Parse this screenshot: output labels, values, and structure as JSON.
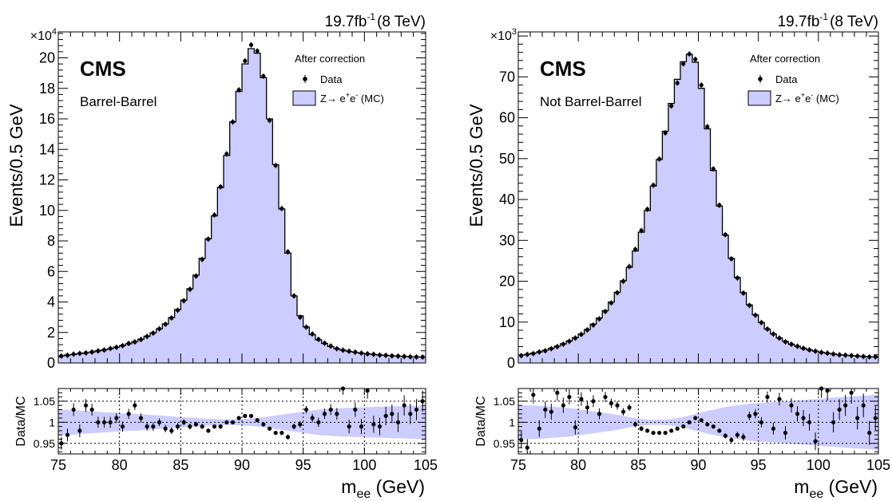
{
  "chart_data": [
    {
      "type": "bar",
      "panel": "Barrel-Barrel",
      "experiment": "CMS",
      "region_label": "Barrel-Barrel",
      "lumi_label": "19.7fb",
      "lumi_exp": "-1",
      "energy_label": "(8 TeV)",
      "legend_title": "After correction",
      "legend": {
        "data": "Data",
        "mc": "Z→ e",
        "mc_tail": " (MC)"
      },
      "ylabel": "Events/0.5 GeV",
      "ymultiplier": "×10",
      "ymultiplier_exp": "4",
      "ylim": [
        0,
        21.7
      ],
      "yticks": [
        0,
        2,
        4,
        6,
        8,
        10,
        12,
        14,
        16,
        18,
        20
      ],
      "xlim": [
        75,
        105
      ],
      "xticks": [
        75,
        80,
        85,
        90,
        95,
        100,
        105
      ],
      "xlabel_main": "m",
      "xlabel_sub": "ee",
      "xlabel_unit": " (GeV)",
      "bin_edges_start": 75,
      "bin_width": 0.5,
      "mc_values": [
        0.46,
        0.52,
        0.56,
        0.62,
        0.66,
        0.72,
        0.8,
        0.86,
        0.94,
        1.04,
        1.14,
        1.26,
        1.4,
        1.56,
        1.76,
        1.98,
        2.24,
        2.56,
        2.98,
        3.5,
        4.12,
        4.86,
        5.76,
        6.86,
        8.14,
        9.64,
        11.5,
        13.6,
        15.8,
        17.8,
        19.6,
        20.6,
        20.3,
        18.7,
        16.0,
        13.0,
        10.1,
        7.2,
        4.4,
        3.1,
        2.36,
        1.86,
        1.52,
        1.28,
        1.08,
        0.94,
        0.84,
        0.76,
        0.7,
        0.64,
        0.6,
        0.56,
        0.52,
        0.5,
        0.47,
        0.45,
        0.43,
        0.41,
        0.4,
        0.39
      ],
      "data_values": [
        0.46,
        0.51,
        0.58,
        0.63,
        0.66,
        0.72,
        0.79,
        0.85,
        0.95,
        1.03,
        1.14,
        1.28,
        1.38,
        1.54,
        1.74,
        1.96,
        2.24,
        2.54,
        2.95,
        3.46,
        4.08,
        4.83,
        5.7,
        6.79,
        8.12,
        9.7,
        11.55,
        13.7,
        15.8,
        17.9,
        19.8,
        20.85,
        20.45,
        18.8,
        15.9,
        12.95,
        10.12,
        7.28,
        4.4,
        3.0,
        2.35,
        1.9,
        1.55,
        1.3,
        1.11,
        0.94,
        0.84,
        0.77,
        0.71,
        0.65,
        0.6,
        0.57,
        0.52,
        0.5,
        0.47,
        0.45,
        0.43,
        0.41,
        0.4,
        0.39
      ],
      "ratio": {
        "ylabel": "Data/MC",
        "ylim": [
          0.925,
          1.08
        ],
        "yticks": [
          0.95,
          1,
          1.05
        ],
        "ytick_labels": [
          "0.95",
          "1",
          "1.05"
        ],
        "values": [
          0.95,
          0.97,
          1.03,
          0.98,
          1.04,
          1.03,
          1.0,
          1.0,
          1.0,
          1.01,
          0.99,
          1.02,
          1.04,
          1.01,
          0.99,
          0.99,
          1.0,
          0.985,
          0.98,
          0.99,
          1.0,
          0.99,
          0.995,
          0.99,
          0.98,
          0.99,
          0.99,
          1.0,
          1.0,
          1.01,
          1.015,
          1.015,
          1.005,
          0.995,
          0.985,
          0.975,
          0.975,
          0.965,
          0.99,
          0.995,
          1.03,
          1.01,
          1.0,
          1.02,
          1.03,
          1.02,
          1.08,
          0.99,
          1.03,
          0.99,
          1.075,
          0.995,
          0.99,
          1.015,
          1.02,
          1.0,
          1.04,
          1.02,
          1.03,
          1.05
        ],
        "errors": [
          0.015,
          0.015,
          0.015,
          0.015,
          0.015,
          0.014,
          0.013,
          0.013,
          0.013,
          0.012,
          0.012,
          0.012,
          0.011,
          0.011,
          0.01,
          0.01,
          0.009,
          0.009,
          0.008,
          0.008,
          0.007,
          0.007,
          0.006,
          0.006,
          0.005,
          0.005,
          0.005,
          0.004,
          0.004,
          0.004,
          0.004,
          0.004,
          0.004,
          0.004,
          0.004,
          0.005,
          0.005,
          0.006,
          0.007,
          0.008,
          0.009,
          0.01,
          0.011,
          0.012,
          0.013,
          0.014,
          0.015,
          0.016,
          0.017,
          0.018,
          0.019,
          0.02,
          0.021,
          0.022,
          0.022,
          0.023,
          0.024,
          0.024,
          0.025,
          0.025
        ],
        "band_halfwidth": [
          0.03,
          0.03,
          0.029,
          0.028,
          0.027,
          0.026,
          0.025,
          0.024,
          0.023,
          0.022,
          0.021,
          0.02,
          0.02,
          0.019,
          0.018,
          0.017,
          0.016,
          0.015,
          0.014,
          0.013,
          0.012,
          0.011,
          0.01,
          0.009,
          0.008,
          0.008,
          0.007,
          0.007,
          0.007,
          0.007,
          0.008,
          0.009,
          0.01,
          0.012,
          0.014,
          0.016,
          0.018,
          0.02,
          0.022,
          0.024,
          0.026,
          0.028,
          0.03,
          0.031,
          0.032,
          0.033,
          0.034,
          0.034,
          0.035,
          0.035,
          0.036,
          0.036,
          0.037,
          0.037,
          0.038,
          0.038,
          0.038,
          0.039,
          0.039,
          0.04
        ]
      }
    },
    {
      "type": "bar",
      "panel": "Not Barrel-Barrel",
      "experiment": "CMS",
      "region_label": "Not Barrel-Barrel",
      "lumi_label": "19.7fb",
      "lumi_exp": "-1",
      "energy_label": "(8 TeV)",
      "legend_title": "After correction",
      "legend": {
        "data": "Data",
        "mc": "Z→ e",
        "mc_tail": " (MC)"
      },
      "ylabel": "Events/0.5 GeV",
      "ymultiplier": "×10",
      "ymultiplier_exp": "3",
      "ylim": [
        0,
        81
      ],
      "yticks": [
        0,
        10,
        20,
        30,
        40,
        50,
        60,
        70
      ],
      "xlim": [
        75,
        105
      ],
      "xticks": [
        75,
        80,
        85,
        90,
        95,
        100,
        105
      ],
      "xlabel_main": "m",
      "xlabel_sub": "ee",
      "xlabel_unit": " (GeV)",
      "bin_edges_start": 75,
      "bin_width": 0.5,
      "mc_values": [
        1.9,
        2.1,
        2.4,
        2.7,
        3.1,
        3.6,
        4.1,
        4.7,
        5.4,
        6.2,
        7.1,
        8.2,
        9.5,
        11.0,
        12.8,
        14.9,
        17.3,
        20.1,
        23.4,
        27.4,
        32.0,
        37.3,
        43.3,
        49.8,
        56.7,
        63.5,
        69.4,
        73.7,
        75.5,
        73.6,
        67.2,
        57.3,
        47.1,
        38.4,
        31.3,
        25.6,
        20.9,
        17.2,
        14.2,
        11.8,
        9.9,
        8.3,
        7.1,
        6.1,
        5.3,
        4.6,
        4.1,
        3.6,
        3.2,
        2.9,
        2.6,
        2.4,
        2.2,
        2.0,
        1.9,
        1.8,
        1.7,
        1.6,
        1.5,
        1.5
      ],
      "data_values": [
        1.8,
        2.1,
        2.3,
        2.7,
        3.0,
        3.5,
        4.0,
        4.6,
        5.3,
        6.1,
        7.0,
        8.1,
        9.3,
        10.8,
        12.6,
        14.7,
        17.2,
        20.0,
        23.6,
        27.8,
        32.4,
        37.6,
        43.5,
        49.9,
        56.3,
        62.9,
        68.5,
        73.2,
        75.6,
        74.3,
        68.0,
        57.8,
        47.5,
        38.6,
        31.4,
        25.5,
        20.8,
        17.1,
        14.1,
        11.7,
        9.9,
        8.3,
        7.1,
        6.1,
        5.2,
        4.6,
        4.1,
        3.6,
        3.2,
        2.9,
        2.6,
        2.4,
        2.2,
        2.0,
        1.9,
        1.8,
        1.7,
        1.6,
        1.5,
        1.5
      ],
      "ratio": {
        "ylabel": "Data/MC",
        "ylim": [
          0.925,
          1.08
        ],
        "yticks": [
          0.95,
          1,
          1.05
        ],
        "ytick_labels": [
          "0.95",
          "1",
          "1.05"
        ],
        "values": [
          0.958,
          0.94,
          1.065,
          0.985,
          1.03,
          1.025,
          1.07,
          1.04,
          1.06,
          0.988,
          1.055,
          1.035,
          1.05,
          1.02,
          1.06,
          1.045,
          1.04,
          1.025,
          1.035,
          0.995,
          0.985,
          0.98,
          0.975,
          0.975,
          0.975,
          0.98,
          0.985,
          0.99,
          1.0,
          1.01,
          1.005,
          0.995,
          0.99,
          0.98,
          0.968,
          0.958,
          0.97,
          0.965,
          1.015,
          1.02,
          1.0,
          1.06,
          0.985,
          1.055,
          0.975,
          1.04,
          1.02,
          1.01,
          1.0,
          0.955,
          1.08,
          1.075,
          1.0,
          1.03,
          1.04,
          1.07,
          1.01,
          1.04,
          0.975,
          1.01
        ],
        "errors": [
          0.02,
          0.02,
          0.02,
          0.02,
          0.02,
          0.019,
          0.019,
          0.018,
          0.018,
          0.017,
          0.016,
          0.015,
          0.014,
          0.013,
          0.012,
          0.011,
          0.01,
          0.009,
          0.008,
          0.007,
          0.006,
          0.005,
          0.005,
          0.004,
          0.004,
          0.004,
          0.004,
          0.004,
          0.004,
          0.004,
          0.004,
          0.004,
          0.005,
          0.005,
          0.006,
          0.007,
          0.008,
          0.009,
          0.01,
          0.011,
          0.012,
          0.013,
          0.014,
          0.015,
          0.016,
          0.017,
          0.018,
          0.019,
          0.02,
          0.021,
          0.022,
          0.023,
          0.024,
          0.025,
          0.025,
          0.026,
          0.027,
          0.028,
          0.028,
          0.029
        ],
        "band_halfwidth": [
          0.04,
          0.04,
          0.04,
          0.039,
          0.038,
          0.037,
          0.036,
          0.035,
          0.034,
          0.032,
          0.03,
          0.028,
          0.026,
          0.024,
          0.022,
          0.02,
          0.018,
          0.015,
          0.012,
          0.01,
          0.008,
          0.007,
          0.006,
          0.006,
          0.007,
          0.008,
          0.01,
          0.013,
          0.016,
          0.02,
          0.023,
          0.027,
          0.03,
          0.033,
          0.036,
          0.038,
          0.04,
          0.042,
          0.044,
          0.045,
          0.046,
          0.047,
          0.048,
          0.049,
          0.05,
          0.051,
          0.052,
          0.053,
          0.054,
          0.055,
          0.056,
          0.057,
          0.058,
          0.059,
          0.06,
          0.061,
          0.062,
          0.063,
          0.064,
          0.065
        ]
      }
    }
  ],
  "colors": {
    "mc_fill": "#ccccff",
    "band_fill": "#ccccff",
    "outline": "#000000",
    "data_marker": "#000000"
  }
}
